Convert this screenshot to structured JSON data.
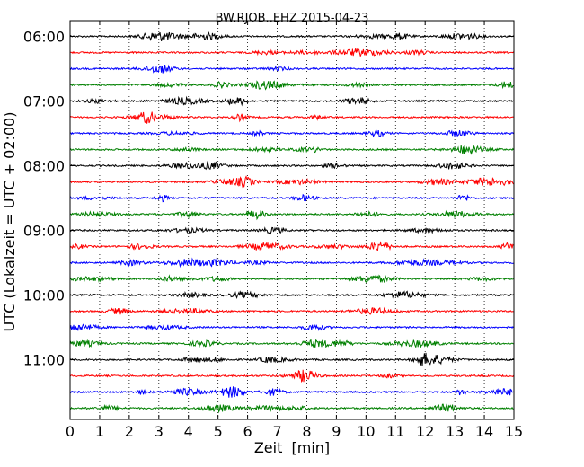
{
  "chart_data": {
    "type": "line",
    "title": "BW.RJOB..EHZ 2015-04-23",
    "xlabel": "Zeit  [min]",
    "ylabel": "UTC (Lokalzeit = UTC + 02:00)",
    "xlim": [
      0,
      15
    ],
    "x_ticks": [
      "0",
      "1",
      "2",
      "3",
      "4",
      "5",
      "6",
      "7",
      "8",
      "9",
      "10",
      "11",
      "12",
      "13",
      "14",
      "15"
    ],
    "y_tick_labels": [
      "06:00",
      "07:00",
      "08:00",
      "09:00",
      "10:00",
      "11:00"
    ],
    "grid": "vertical dotted",
    "trace_colors": [
      "#000000",
      "#ff0000",
      "#0000ff",
      "#008000"
    ],
    "traces": [
      {
        "start": "06:00"
      },
      {
        "start": "06:15"
      },
      {
        "start": "06:30"
      },
      {
        "start": "06:45"
      },
      {
        "start": "07:00"
      },
      {
        "start": "07:15"
      },
      {
        "start": "07:30"
      },
      {
        "start": "07:45"
      },
      {
        "start": "08:00"
      },
      {
        "start": "08:15"
      },
      {
        "start": "08:30"
      },
      {
        "start": "08:45"
      },
      {
        "start": "09:00"
      },
      {
        "start": "09:15"
      },
      {
        "start": "09:30"
      },
      {
        "start": "09:45"
      },
      {
        "start": "10:00"
      },
      {
        "start": "10:15"
      },
      {
        "start": "10:30"
      },
      {
        "start": "10:45"
      },
      {
        "start": "11:00"
      },
      {
        "start": "11:15"
      },
      {
        "start": "11:30"
      },
      {
        "start": "11:45"
      }
    ]
  }
}
